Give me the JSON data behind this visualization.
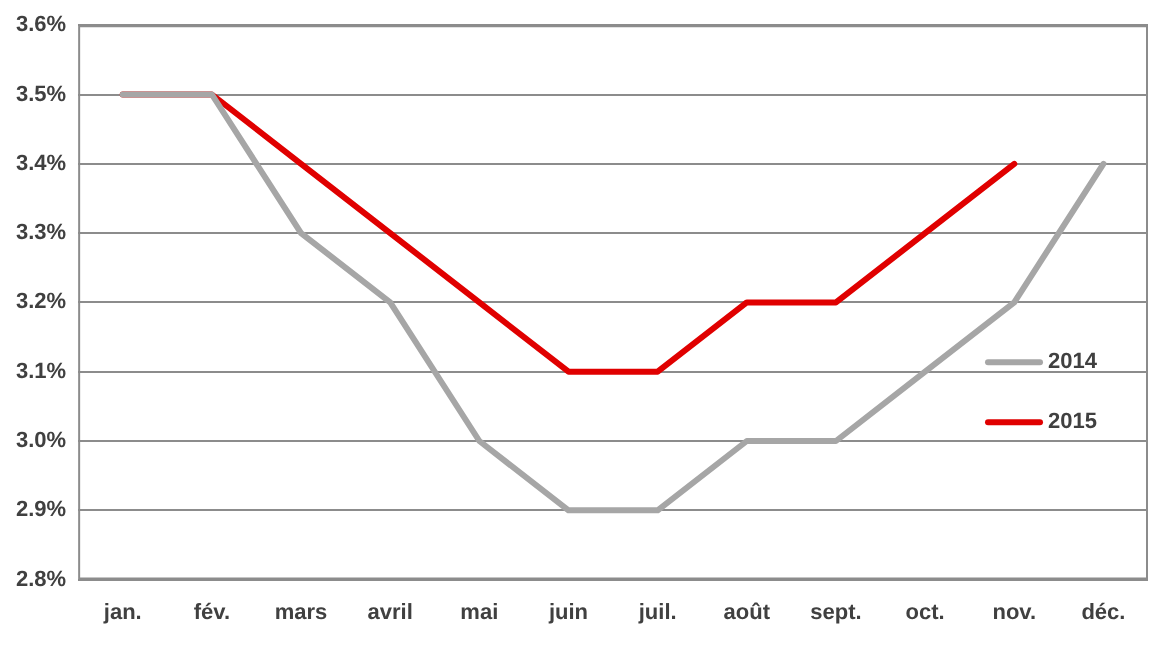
{
  "chart_data": {
    "type": "line",
    "categories": [
      "jan.",
      "fév.",
      "mars",
      "avril",
      "mai",
      "juin",
      "juil.",
      "août",
      "sept.",
      "oct.",
      "nov.",
      "déc."
    ],
    "series": [
      {
        "name": "2014",
        "color": "#a6a6a6",
        "values": [
          3.5,
          3.5,
          3.3,
          3.2,
          3.0,
          2.9,
          2.9,
          3.0,
          3.0,
          3.1,
          3.2,
          3.4
        ]
      },
      {
        "name": "2015",
        "color": "#e00000",
        "values": [
          3.5,
          3.5,
          3.4,
          3.3,
          3.2,
          3.1,
          3.1,
          3.2,
          3.2,
          3.3,
          3.4,
          null
        ]
      }
    ],
    "ylim": [
      2.8,
      3.6
    ],
    "yticks": [
      {
        "value": 2.8,
        "label": "2.8%"
      },
      {
        "value": 2.9,
        "label": "2.9%"
      },
      {
        "value": 3.0,
        "label": "3.0%"
      },
      {
        "value": 3.1,
        "label": "3.1%"
      },
      {
        "value": 3.2,
        "label": "3.2%"
      },
      {
        "value": 3.3,
        "label": "3.3%"
      },
      {
        "value": 3.4,
        "label": "3.4%"
      },
      {
        "value": 3.5,
        "label": "3.5%"
      },
      {
        "value": 3.6,
        "label": "3.6%"
      }
    ],
    "grid": "y",
    "legend": "right",
    "marker": "none",
    "line_style": "solid"
  }
}
